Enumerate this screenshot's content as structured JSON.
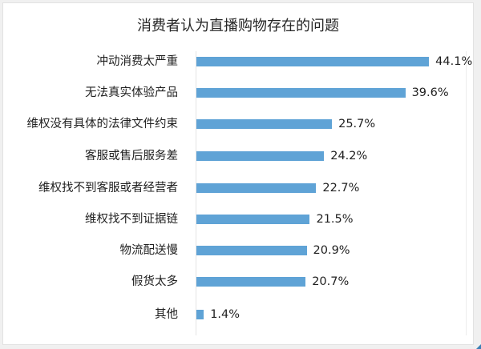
{
  "chart_data": {
    "type": "bar",
    "orientation": "horizontal",
    "title": "消费者认为直播购物存在的问题",
    "xlabel": "",
    "ylabel": "",
    "categories": [
      "冲动消费太严重",
      "无法真实体验产品",
      "维权没有具体的法律文件约束",
      "客服或售后服务差",
      "维权找不到客服或者经营者",
      "维权找不到证据链",
      "物流配送慢",
      "假货太多",
      "其他"
    ],
    "values": [
      44.1,
      39.6,
      25.7,
      24.2,
      22.7,
      21.5,
      20.9,
      20.7,
      1.4
    ],
    "value_labels": [
      "44.1%",
      "39.6%",
      "25.7%",
      "24.2%",
      "22.7%",
      "21.5%",
      "20.9%",
      "20.7%",
      "1.4%"
    ],
    "unit": "%",
    "bar_color": "#5fa3d6",
    "grid": false,
    "legend": null
  }
}
